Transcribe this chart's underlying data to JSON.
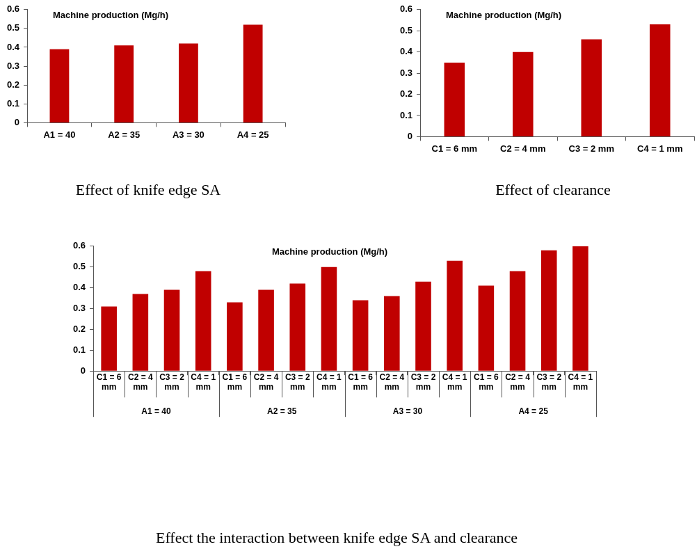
{
  "chart_data": [
    {
      "type": "bar",
      "title": "Machine production (Mg/h)",
      "xlabel": "Effect of knife edge SA",
      "categories": [
        "A1 = 40",
        "A2 = 35",
        "A3 = 30",
        "A4 = 25"
      ],
      "values": [
        0.39,
        0.41,
        0.42,
        0.52
      ],
      "color": "#c00000",
      "ylim": [
        0,
        0.6
      ],
      "yticks": [
        0,
        0.1,
        0.2,
        0.3,
        0.4,
        0.5,
        0.6
      ],
      "grid": false,
      "legend": false
    },
    {
      "type": "bar",
      "title": "Machine production (Mg/h)",
      "xlabel": "Effect of clearance",
      "categories": [
        "C1 = 6 mm",
        "C2 = 4 mm",
        "C3 = 2 mm",
        "C4 = 1 mm"
      ],
      "values": [
        0.35,
        0.4,
        0.46,
        0.53
      ],
      "color": "#c00000",
      "ylim": [
        0,
        0.6
      ],
      "yticks": [
        0,
        0.1,
        0.2,
        0.3,
        0.4,
        0.5,
        0.6
      ],
      "grid": false,
      "legend": false
    },
    {
      "type": "bar",
      "title": "Machine production (Mg/h)",
      "xlabel": "Effect the interaction between knife edge SA and clearance",
      "categories": [
        "C1 = 6 mm",
        "C2 = 4 mm",
        "C3 = 2 mm",
        "C4 = 1 mm",
        "C1 = 6 mm",
        "C2 = 4 mm",
        "C3 = 2 mm",
        "C4 = 1 mm",
        "C1 = 6 mm",
        "C2 = 4 mm",
        "C3 = 2 mm",
        "C4 = 1 mm",
        "C1 = 6 mm",
        "C2 = 4 mm",
        "C3 = 2 mm",
        "C4 = 1 mm"
      ],
      "values": [
        0.31,
        0.37,
        0.39,
        0.48,
        0.33,
        0.39,
        0.42,
        0.5,
        0.34,
        0.36,
        0.43,
        0.53,
        0.41,
        0.48,
        0.58,
        0.6
      ],
      "color": "#c00000",
      "ylim": [
        0,
        0.6
      ],
      "yticks": [
        0,
        0.1,
        0.2,
        0.3,
        0.4,
        0.5,
        0.6
      ],
      "grid": false,
      "legend": false,
      "annotations": [
        "A1 = 40",
        "A2 = 35",
        "A3 = 30",
        "A4 = 25"
      ]
    }
  ]
}
